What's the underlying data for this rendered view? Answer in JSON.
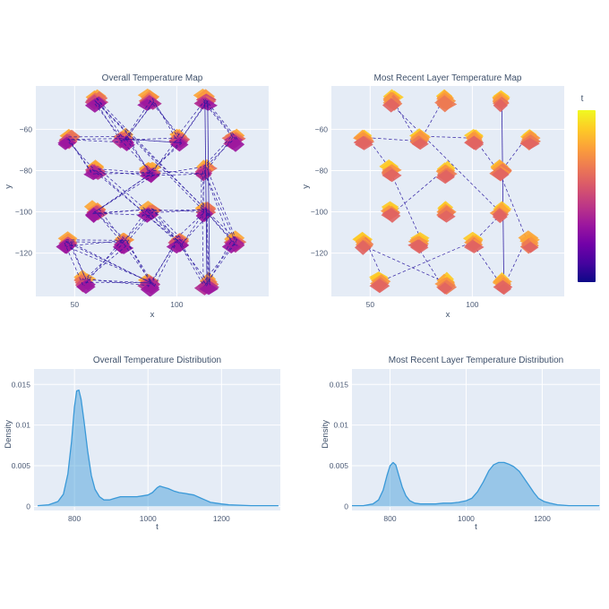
{
  "colors": {
    "plot_bg": "#e5ecf6",
    "grid": "#ffffff",
    "title_text": "#3f516b",
    "tick_text": "#4c5b76",
    "edge_line": "#2a18a0",
    "density_stroke": "#3a99d8",
    "density_fill": "rgba(58,153,216,0.45)"
  },
  "colorbar": {
    "title": "t",
    "gradient": [
      "#f0f921",
      "#fdca26",
      "#fb9f3a",
      "#ed7953",
      "#d8576b",
      "#bd3786",
      "#9c179e",
      "#7201a8",
      "#46039f",
      "#0d0887"
    ]
  },
  "chart_data": [
    {
      "id": "map_overall",
      "type": "scatter",
      "title": "Overall Temperature Map",
      "xlabel": "x",
      "ylabel": "y",
      "x_range": [
        31,
        145
      ],
      "y_range": [
        -141,
        -39
      ],
      "x_ticks": [
        {
          "v": 50,
          "label": "50"
        },
        {
          "v": 100,
          "label": "100"
        }
      ],
      "y_ticks": [
        {
          "v": -60,
          "label": "−60"
        },
        {
          "v": -80,
          "label": "−80"
        },
        {
          "v": -100,
          "label": "−100"
        },
        {
          "v": -120,
          "label": "−120"
        }
      ],
      "nodes": [
        [
          61,
          -46
        ],
        [
          87,
          -46
        ],
        [
          114,
          -46
        ],
        [
          47,
          -65
        ],
        [
          74,
          -65
        ],
        [
          101,
          -65
        ],
        [
          128,
          -65
        ],
        [
          60,
          -80
        ],
        [
          87,
          -81
        ],
        [
          114,
          -80
        ],
        [
          60,
          -100
        ],
        [
          87,
          -100
        ],
        [
          114,
          -100
        ],
        [
          47,
          -115
        ],
        [
          74,
          -115
        ],
        [
          101,
          -115
        ],
        [
          128,
          -115
        ],
        [
          55,
          -134
        ],
        [
          87,
          -135
        ],
        [
          115,
          -135
        ]
      ],
      "edges": [
        [
          0,
          4
        ],
        [
          1,
          4
        ],
        [
          1,
          5
        ],
        [
          2,
          5
        ],
        [
          2,
          6
        ],
        [
          3,
          4
        ],
        [
          4,
          5
        ],
        [
          3,
          7
        ],
        [
          4,
          8
        ],
        [
          6,
          9
        ],
        [
          7,
          8
        ],
        [
          8,
          9
        ],
        [
          5,
          8
        ],
        [
          8,
          10
        ],
        [
          9,
          12
        ],
        [
          9,
          16
        ],
        [
          10,
          11
        ],
        [
          11,
          12
        ],
        [
          10,
          14
        ],
        [
          11,
          14
        ],
        [
          11,
          15
        ],
        [
          12,
          15
        ],
        [
          12,
          16
        ],
        [
          13,
          14
        ],
        [
          13,
          17
        ],
        [
          13,
          18
        ],
        [
          14,
          18
        ],
        [
          15,
          18
        ],
        [
          15,
          19
        ],
        [
          16,
          19
        ],
        [
          17,
          18
        ],
        [
          0,
          12
        ],
        [
          7,
          15
        ],
        [
          12,
          19
        ],
        [
          14,
          17
        ]
      ],
      "solid_edges": [
        [
          2,
          19
        ]
      ],
      "edge_bundle": 3,
      "edges_on_top": true,
      "cluster_jitter": 1.0,
      "palette": [
        "#fca636",
        "#f89540",
        "#e97158",
        "#e16462",
        "#cc4778",
        "#b12a90",
        "#9c179e"
      ],
      "seed": 11
    },
    {
      "id": "map_recent",
      "type": "scatter",
      "title": "Most Recent Layer Temperature Map",
      "xlabel": "x",
      "ylabel": "y",
      "x_range": [
        31,
        145
      ],
      "y_range": [
        -141,
        -39
      ],
      "x_ticks": [
        {
          "v": 50,
          "label": "50"
        },
        {
          "v": 100,
          "label": "100"
        }
      ],
      "y_ticks": [
        {
          "v": -60,
          "label": "−60"
        },
        {
          "v": -80,
          "label": "−80"
        },
        {
          "v": -100,
          "label": "−100"
        },
        {
          "v": -120,
          "label": "−120"
        }
      ],
      "nodes": [
        [
          61,
          -46
        ],
        [
          87,
          -46
        ],
        [
          114,
          -46
        ],
        [
          47,
          -65
        ],
        [
          74,
          -65
        ],
        [
          101,
          -65
        ],
        [
          128,
          -65
        ],
        [
          60,
          -80
        ],
        [
          87,
          -81
        ],
        [
          114,
          -80
        ],
        [
          60,
          -100
        ],
        [
          87,
          -100
        ],
        [
          114,
          -100
        ],
        [
          47,
          -115
        ],
        [
          74,
          -115
        ],
        [
          101,
          -115
        ],
        [
          128,
          -115
        ],
        [
          55,
          -134
        ],
        [
          87,
          -135
        ],
        [
          115,
          -135
        ]
      ],
      "edges": [
        [
          0,
          4
        ],
        [
          1,
          4
        ],
        [
          3,
          4
        ],
        [
          4,
          5
        ],
        [
          3,
          7
        ],
        [
          6,
          9
        ],
        [
          8,
          10
        ],
        [
          7,
          14
        ],
        [
          9,
          16
        ],
        [
          0,
          12
        ],
        [
          12,
          15
        ],
        [
          5,
          9
        ],
        [
          13,
          17
        ],
        [
          13,
          18
        ],
        [
          17,
          15
        ],
        [
          15,
          19
        ],
        [
          16,
          19
        ],
        [
          14,
          18
        ]
      ],
      "solid_edges": [
        [
          2,
          19
        ]
      ],
      "edge_bundle": 1,
      "edges_on_top": false,
      "cluster_jitter": 0.6,
      "palette": [
        "#fdca26",
        "#fca636",
        "#f89540",
        "#f89540",
        "#ed7953",
        "#e16462"
      ],
      "seed": 5
    },
    {
      "id": "dist_overall",
      "type": "area",
      "title": "Overall Temperature Distribution",
      "xlabel": "t",
      "ylabel": "Density",
      "x_range": [
        690,
        1360
      ],
      "y_range": [
        -0.0005,
        0.0169
      ],
      "x_ticks": [
        {
          "v": 800,
          "label": "800"
        },
        {
          "v": 1000,
          "label": "1000"
        },
        {
          "v": 1200,
          "label": "1200"
        }
      ],
      "y_ticks": [
        {
          "v": 0,
          "label": "0"
        },
        {
          "v": 0.005,
          "label": "0.005"
        },
        {
          "v": 0.01,
          "label": "0.01"
        },
        {
          "v": 0.015,
          "label": "0.015"
        }
      ],
      "x": [
        700,
        730,
        755,
        770,
        782,
        792,
        800,
        806,
        812,
        818,
        826,
        836,
        846,
        856,
        868,
        880,
        895,
        910,
        925,
        940,
        955,
        970,
        985,
        1000,
        1012,
        1025,
        1032,
        1040,
        1055,
        1070,
        1085,
        1100,
        1112,
        1125,
        1140,
        1155,
        1170,
        1185,
        1200,
        1220,
        1250,
        1280,
        1310,
        1340,
        1355
      ],
      "y": [
        0.0001,
        0.0002,
        0.0006,
        0.0015,
        0.004,
        0.008,
        0.0122,
        0.0142,
        0.0143,
        0.0132,
        0.0105,
        0.0068,
        0.0038,
        0.0021,
        0.0012,
        0.0008,
        0.0008,
        0.001,
        0.0012,
        0.0012,
        0.0012,
        0.0012,
        0.0013,
        0.0014,
        0.0017,
        0.0023,
        0.0025,
        0.0024,
        0.0022,
        0.0019,
        0.0017,
        0.0016,
        0.0015,
        0.0014,
        0.0011,
        0.0008,
        0.0005,
        0.0004,
        0.0003,
        0.0002,
        0.00015,
        0.0001,
        0.0001,
        0.0001,
        0.0001
      ]
    },
    {
      "id": "dist_recent",
      "type": "area",
      "title": "Most Recent Layer Temperature Distribution",
      "xlabel": "t",
      "ylabel": "Density",
      "x_range": [
        700,
        1352
      ],
      "y_range": [
        -0.0005,
        0.0169
      ],
      "x_ticks": [
        {
          "v": 800,
          "label": "800"
        },
        {
          "v": 1000,
          "label": "1000"
        },
        {
          "v": 1200,
          "label": "1200"
        }
      ],
      "y_ticks": [
        {
          "v": 0,
          "label": "0"
        },
        {
          "v": 0.005,
          "label": "0.005"
        },
        {
          "v": 0.01,
          "label": "0.01"
        },
        {
          "v": 0.015,
          "label": "0.015"
        }
      ],
      "x": [
        700,
        730,
        755,
        770,
        782,
        792,
        800,
        808,
        815,
        822,
        832,
        842,
        852,
        865,
        880,
        900,
        920,
        940,
        960,
        980,
        1000,
        1015,
        1030,
        1045,
        1060,
        1072,
        1085,
        1100,
        1112,
        1125,
        1140,
        1152,
        1165,
        1178,
        1190,
        1205,
        1220,
        1240,
        1270,
        1310,
        1350
      ],
      "y": [
        0.0001,
        0.0001,
        0.0003,
        0.0008,
        0.002,
        0.0038,
        0.005,
        0.0054,
        0.0051,
        0.004,
        0.0024,
        0.0013,
        0.0007,
        0.0004,
        0.0003,
        0.0003,
        0.0003,
        0.0004,
        0.0004,
        0.0005,
        0.0007,
        0.001,
        0.0018,
        0.003,
        0.0044,
        0.0051,
        0.0054,
        0.0054,
        0.0052,
        0.0049,
        0.0043,
        0.0035,
        0.0026,
        0.0017,
        0.001,
        0.0006,
        0.0004,
        0.0002,
        0.0001,
        0.0001,
        0.0001
      ]
    }
  ]
}
